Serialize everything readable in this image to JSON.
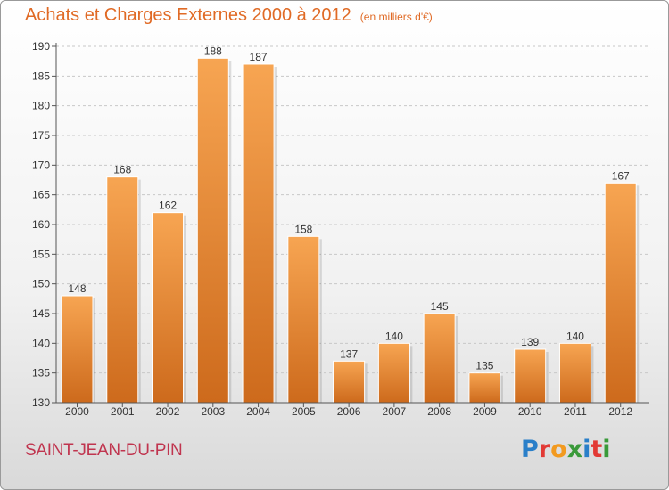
{
  "title": "Achats et Charges Externes 2000 à 2012",
  "subtitle": "(en milliers d'€)",
  "city": "SAINT-JEAN-DU-PIN",
  "brand": {
    "letters": [
      "P",
      "r",
      "o",
      "x",
      "i",
      "t",
      "i"
    ],
    "colors": [
      "#2a7fc9",
      "#e23a35",
      "#f29a1f",
      "#3a9a3a",
      "#2a7fc9",
      "#e23a35",
      "#3a9a3a"
    ]
  },
  "colors": {
    "bar_light": "#f7a552",
    "bar_dark": "#cd6a1c",
    "title": "#e06a25",
    "city": "#c0354f"
  },
  "chart_data": {
    "type": "bar",
    "categories": [
      "2000",
      "2001",
      "2002",
      "2003",
      "2004",
      "2005",
      "2006",
      "2007",
      "2008",
      "2009",
      "2010",
      "2011",
      "2012"
    ],
    "values": [
      148,
      168,
      162,
      188,
      187,
      158,
      137,
      140,
      145,
      135,
      139,
      140,
      167
    ],
    "title": "Achats et Charges Externes 2000 à 2012",
    "subtitle": "(en milliers d'€)",
    "xlabel": "",
    "ylabel": "",
    "ylim": [
      130,
      190
    ],
    "yticks": [
      130,
      135,
      140,
      145,
      150,
      155,
      160,
      165,
      170,
      175,
      180,
      185,
      190
    ],
    "grid": "horizontal dashed",
    "data_labels": true
  }
}
